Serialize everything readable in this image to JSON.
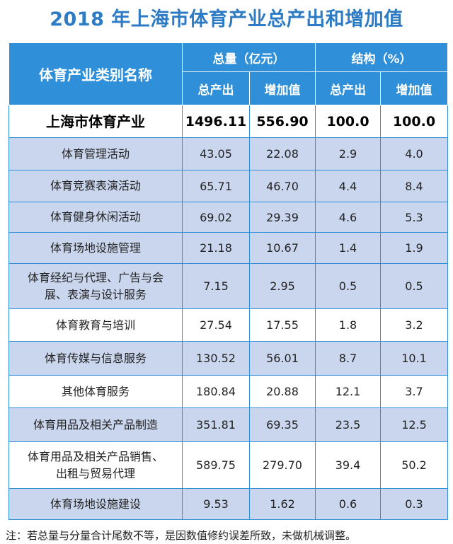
{
  "title": "2018 年上海市体育产业总产出和增加值",
  "header": {
    "category": "体育产业类别名称",
    "group_total": "总量（亿元）",
    "group_structure": "结构（%）",
    "output": "总产出",
    "added_value": "增加值",
    "output2": "总产出",
    "added_value2": "增加值"
  },
  "rows": [
    {
      "name": "上海市体育产业",
      "output": "1496.11",
      "added": "556.90",
      "s_output": "100.0",
      "s_added": "100.0"
    },
    {
      "name": "体育管理活动",
      "output": "43.05",
      "added": "22.08",
      "s_output": "2.9",
      "s_added": "4.0"
    },
    {
      "name": "体育竞赛表演活动",
      "output": "65.71",
      "added": "46.70",
      "s_output": "4.4",
      "s_added": "8.4"
    },
    {
      "name": "体育健身休闲活动",
      "output": "69.02",
      "added": "29.39",
      "s_output": "4.6",
      "s_added": "5.3"
    },
    {
      "name": "体育场地设施管理",
      "output": "21.18",
      "added": "10.67",
      "s_output": "1.4",
      "s_added": "1.9"
    },
    {
      "name1": "体育经纪与代理、广告与会",
      "name2": "展、表演与设计服务",
      "output": "7.15",
      "added": "2.95",
      "s_output": "0.5",
      "s_added": "0.5"
    },
    {
      "name": "体育教育与培训",
      "output": "27.54",
      "added": "17.55",
      "s_output": "1.8",
      "s_added": "3.2"
    },
    {
      "name": "体育传媒与信息服务",
      "output": "130.52",
      "added": "56.01",
      "s_output": "8.7",
      "s_added": "10.1"
    },
    {
      "name": "其他体育服务",
      "output": "180.84",
      "added": "20.88",
      "s_output": "12.1",
      "s_added": "3.7"
    },
    {
      "name": "体育用品及相关产品制造",
      "output": "351.81",
      "added": "69.35",
      "s_output": "23.5",
      "s_added": "12.5"
    },
    {
      "name1": "体育用品及相关产品销售、",
      "name2": "出租与贸易代理",
      "output": "589.75",
      "added": "279.70",
      "s_output": "39.4",
      "s_added": "50.2"
    },
    {
      "name": "体育场地设施建设",
      "output": "9.53",
      "added": "1.62",
      "s_output": "0.6",
      "s_added": "0.3"
    }
  ],
  "note": "注：若总量与分量合计尾数不等，是因数值修约误差所致，未做机械调整。",
  "colors": {
    "accent": "#2D7BC4",
    "header_bg": "#2F8FD8",
    "alt_row": "#C9D6EE"
  }
}
